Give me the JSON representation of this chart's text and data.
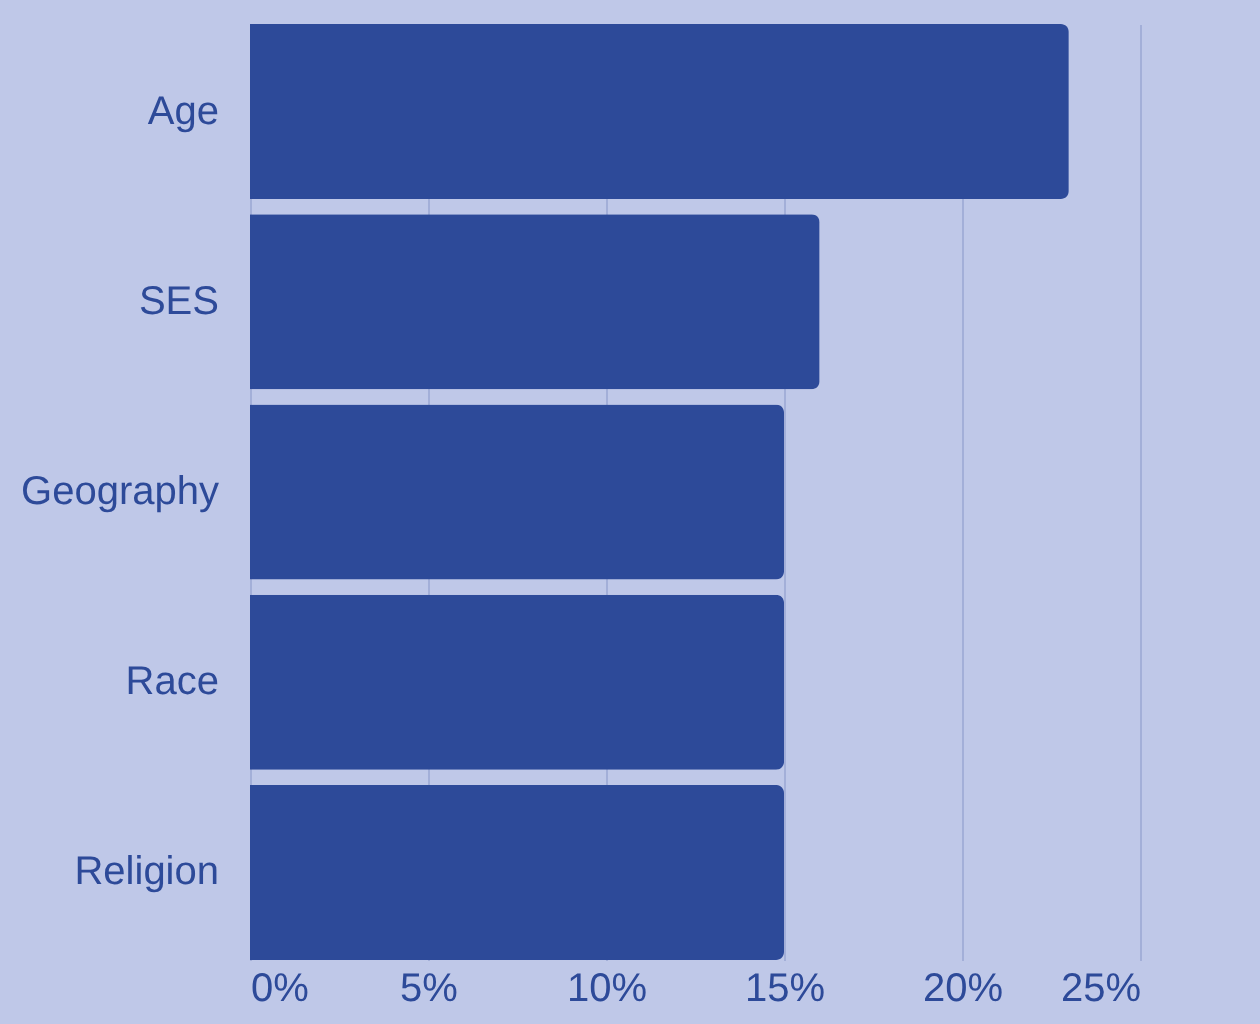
{
  "chart_data": {
    "type": "bar",
    "orientation": "horizontal",
    "categories": [
      "Age",
      "SES",
      "Geography",
      "Race",
      "Religion"
    ],
    "values": [
      23,
      16,
      15,
      15,
      15
    ],
    "color": "#2d4a99",
    "xlim": [
      0,
      25
    ],
    "xticks": [
      {
        "value": 0,
        "label": "0%"
      },
      {
        "value": 5,
        "label": "5%"
      },
      {
        "value": 10,
        "label": "10%"
      },
      {
        "value": 15,
        "label": "15%"
      },
      {
        "value": 20,
        "label": "20%"
      },
      {
        "value": 25,
        "label": "25%"
      }
    ],
    "grid": "x"
  }
}
